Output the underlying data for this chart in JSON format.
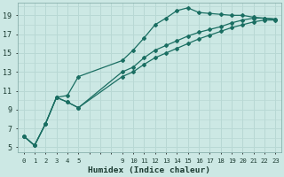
{
  "bg_color": "#cce8e4",
  "grid_color": "#b8d8d4",
  "line_color": "#1a6e62",
  "xlabel": "Humidex (Indice chaleur)",
  "ylabel_ticks": [
    5,
    7,
    9,
    11,
    13,
    15,
    17,
    19
  ],
  "xtick_labels": [
    "0",
    "1",
    "2",
    "3",
    "4",
    "5",
    "",
    "",
    "",
    "9",
    "10",
    "11",
    "12",
    "13",
    "14",
    "15",
    "16",
    "17",
    "18",
    "19",
    "20",
    "21",
    "22",
    "23"
  ],
  "xtick_positions": [
    0,
    1,
    2,
    3,
    4,
    5,
    6,
    7,
    8,
    9,
    10,
    11,
    12,
    13,
    14,
    15,
    16,
    17,
    18,
    19,
    20,
    21,
    22,
    23
  ],
  "series1_x": [
    0,
    1,
    2,
    3,
    4,
    5,
    9,
    10,
    11,
    12,
    13,
    14,
    15,
    16,
    17,
    18,
    19,
    20,
    21,
    22,
    23
  ],
  "series1_y": [
    6.2,
    5.2,
    7.5,
    10.3,
    10.5,
    12.5,
    14.2,
    15.3,
    16.6,
    18.0,
    18.7,
    19.5,
    19.8,
    19.3,
    19.2,
    19.1,
    19.0,
    19.0,
    18.8,
    18.7,
    18.6
  ],
  "series2_x": [
    0,
    1,
    2,
    3,
    4,
    5,
    9,
    10,
    11,
    12,
    13,
    14,
    15,
    16,
    17,
    18,
    19,
    20,
    21,
    22,
    23
  ],
  "series2_y": [
    6.2,
    5.2,
    7.5,
    10.3,
    9.8,
    9.2,
    13.0,
    13.5,
    14.5,
    15.3,
    15.8,
    16.3,
    16.8,
    17.2,
    17.5,
    17.8,
    18.2,
    18.5,
    18.7,
    18.7,
    18.6
  ],
  "series3_x": [
    0,
    1,
    2,
    3,
    4,
    5,
    9,
    10,
    11,
    12,
    13,
    14,
    15,
    16,
    17,
    18,
    19,
    20,
    21,
    22,
    23
  ],
  "series3_y": [
    6.2,
    5.2,
    7.5,
    10.3,
    9.8,
    9.2,
    12.5,
    13.0,
    13.8,
    14.5,
    15.0,
    15.5,
    16.0,
    16.5,
    16.9,
    17.3,
    17.7,
    18.0,
    18.3,
    18.5,
    18.5
  ],
  "ylim": [
    4.5,
    20.3
  ],
  "xlim": [
    -0.5,
    23.5
  ]
}
